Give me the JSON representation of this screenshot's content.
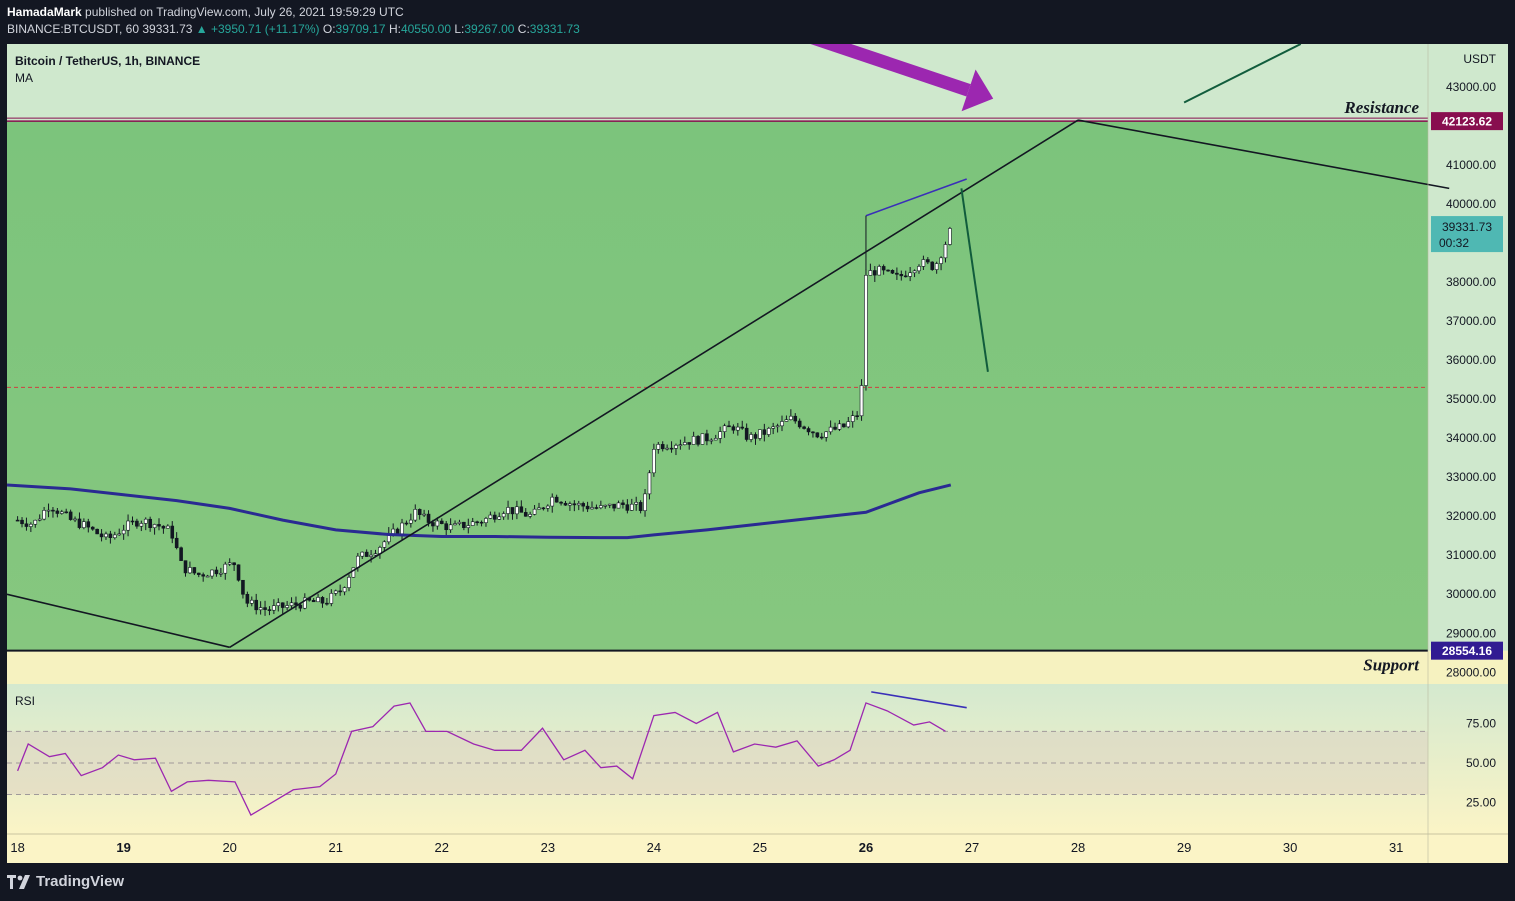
{
  "header": {
    "author": "HamadaMark",
    "published": "published on TradingView.com, July 26, 2021 19:59:29 UTC",
    "symbol": "BINANCE:BTCUSDT, 60",
    "last": "39331.73",
    "change": "▲ +3950.71 (+11.17%)",
    "o_label": "O:",
    "o": "39709.17",
    "h_label": "H:",
    "h": "40550.00",
    "l_label": "L:",
    "l": "39267.00",
    "c_label": "C:",
    "c": "39331.73"
  },
  "legend": {
    "title": "Bitcoin / TetherUS, 1h, BINANCE",
    "indicator": "MA"
  },
  "rsi_label": "RSI",
  "footer": {
    "brand": "TradingView",
    "logo_icon": "tradingview-logo-icon"
  },
  "colors": {
    "zone_green": "#7cc47c",
    "zone_pale": "#cfe8cd",
    "support_band": "#f6f2c0",
    "ma_line": "#2a2a92",
    "rsi_line": "#9c27b0",
    "resistance": "#880e4f",
    "support": "#311b92",
    "last_price": "#4fb8b3",
    "arrow": "#9c27b0"
  },
  "chart_data": {
    "type": "candlestick",
    "title": "Bitcoin / TetherUS, 1h, BINANCE",
    "price_axis": {
      "unit": "USDT",
      "ticks": [
        43000,
        41000,
        40000,
        38000,
        37000,
        36000,
        35000,
        34000,
        33000,
        32000,
        31000,
        30000,
        29000,
        28000
      ],
      "tick_labels": [
        "43000.00",
        "41000.00",
        "40000.00",
        "38000.00",
        "37000.00",
        "36000.00",
        "35000.00",
        "34000.00",
        "33000.00",
        "32000.00",
        "31000.00",
        "30000.00",
        "29000.00",
        "28000.00"
      ],
      "range": [
        27700,
        44100
      ]
    },
    "time_axis": {
      "labels": [
        "18",
        "19",
        "20",
        "21",
        "22",
        "23",
        "24",
        "25",
        "26",
        "27",
        "28",
        "29",
        "30",
        "31"
      ],
      "bold": [
        "19",
        "26"
      ],
      "range": [
        17.9,
        31.3
      ]
    },
    "levels": [
      {
        "name": "Resistance",
        "value": 42123.62,
        "label": "42123.62"
      },
      {
        "name": "Support",
        "value": 28554.16,
        "label": "28554.16"
      }
    ],
    "last_price": {
      "value": 39331.73,
      "label": "39331.73",
      "countdown": "00:32"
    },
    "dashed_level": 35300,
    "price_path": [
      [
        18.0,
        31900
      ],
      [
        18.15,
        31800
      ],
      [
        18.3,
        32300
      ],
      [
        18.5,
        31900
      ],
      [
        18.6,
        31800
      ],
      [
        18.85,
        31400
      ],
      [
        19.0,
        31700
      ],
      [
        19.15,
        31900
      ],
      [
        19.3,
        31800
      ],
      [
        19.45,
        31600
      ],
      [
        19.55,
        30700
      ],
      [
        19.7,
        30500
      ],
      [
        19.85,
        30600
      ],
      [
        20.05,
        30800
      ],
      [
        20.15,
        29800
      ],
      [
        20.35,
        29600
      ],
      [
        20.55,
        29700
      ],
      [
        20.75,
        29800
      ],
      [
        20.9,
        29800
      ],
      [
        21.05,
        30100
      ],
      [
        21.2,
        30900
      ],
      [
        21.4,
        31200
      ],
      [
        21.6,
        31700
      ],
      [
        21.75,
        32100
      ],
      [
        21.85,
        31900
      ],
      [
        22.1,
        31700
      ],
      [
        22.4,
        31900
      ],
      [
        22.6,
        32200
      ],
      [
        22.85,
        32000
      ],
      [
        23.05,
        32500
      ],
      [
        23.25,
        32300
      ],
      [
        23.5,
        32200
      ],
      [
        23.7,
        32300
      ],
      [
        23.9,
        32200
      ],
      [
        24.0,
        33800
      ],
      [
        24.25,
        33900
      ],
      [
        24.5,
        34000
      ],
      [
        24.75,
        34300
      ],
      [
        24.9,
        34000
      ],
      [
        25.1,
        34200
      ],
      [
        25.3,
        34500
      ],
      [
        25.55,
        34100
      ],
      [
        25.8,
        34300
      ],
      [
        25.95,
        34700
      ],
      [
        26.0,
        38200
      ],
      [
        26.1,
        38300
      ],
      [
        26.3,
        38100
      ],
      [
        26.5,
        38500
      ],
      [
        26.65,
        38400
      ],
      [
        26.75,
        39000
      ],
      [
        26.8,
        39331.73
      ]
    ],
    "ma_series": [
      [
        17.9,
        32800
      ],
      [
        18.5,
        32700
      ],
      [
        19.0,
        32550
      ],
      [
        19.5,
        32400
      ],
      [
        20.0,
        32200
      ],
      [
        20.5,
        31900
      ],
      [
        21.0,
        31650
      ],
      [
        21.5,
        31530
      ],
      [
        22.0,
        31480
      ],
      [
        22.5,
        31480
      ],
      [
        23.0,
        31460
      ],
      [
        23.5,
        31450
      ],
      [
        23.75,
        31450
      ],
      [
        24.0,
        31520
      ],
      [
        24.5,
        31650
      ],
      [
        25.0,
        31800
      ],
      [
        25.5,
        31950
      ],
      [
        26.0,
        32100
      ],
      [
        26.3,
        32400
      ],
      [
        26.5,
        32600
      ],
      [
        26.8,
        32800
      ]
    ],
    "trendlines": [
      {
        "name": "rising-wedge-upper",
        "points": [
          [
            20.0,
            28640
          ],
          [
            28.0,
            42150
          ]
        ]
      },
      {
        "name": "falling-line-right",
        "points": [
          [
            28.0,
            42150
          ],
          [
            31.5,
            40400
          ]
        ]
      },
      {
        "name": "falling-line-left",
        "points": [
          [
            17.9,
            30000
          ],
          [
            20.0,
            28640
          ]
        ]
      },
      {
        "name": "divergence-top",
        "points": [
          [
            26.0,
            39700
          ],
          [
            26.95,
            40640
          ]
        ]
      },
      {
        "name": "projection-down",
        "points": [
          [
            26.9,
            40400
          ],
          [
            27.15,
            35700
          ]
        ]
      },
      {
        "name": "projection-up",
        "points": [
          [
            29.0,
            42600
          ],
          [
            30.1,
            44100
          ]
        ]
      }
    ],
    "annotations": [
      "Resistance",
      "Support"
    ],
    "rsi": {
      "label": "RSI",
      "ticks": [
        75,
        50,
        25
      ],
      "tick_labels": [
        "75.00",
        "50.00",
        "25.00"
      ],
      "band": [
        30,
        70
      ],
      "range": [
        5,
        100
      ],
      "values": [
        [
          18.0,
          45
        ],
        [
          18.1,
          62
        ],
        [
          18.3,
          54
        ],
        [
          18.45,
          56
        ],
        [
          18.6,
          42
        ],
        [
          18.8,
          47
        ],
        [
          18.95,
          55
        ],
        [
          19.1,
          52
        ],
        [
          19.3,
          53
        ],
        [
          19.45,
          32
        ],
        [
          19.6,
          38
        ],
        [
          19.8,
          39
        ],
        [
          20.05,
          38
        ],
        [
          20.2,
          17
        ],
        [
          20.4,
          25
        ],
        [
          20.6,
          33
        ],
        [
          20.85,
          35
        ],
        [
          21.0,
          43
        ],
        [
          21.15,
          70
        ],
        [
          21.35,
          73
        ],
        [
          21.55,
          86
        ],
        [
          21.7,
          88
        ],
        [
          21.85,
          70
        ],
        [
          22.05,
          70
        ],
        [
          22.3,
          62
        ],
        [
          22.5,
          58
        ],
        [
          22.75,
          58
        ],
        [
          22.95,
          72
        ],
        [
          23.15,
          52
        ],
        [
          23.35,
          58
        ],
        [
          23.5,
          47
        ],
        [
          23.65,
          48
        ],
        [
          23.8,
          40
        ],
        [
          24.0,
          80
        ],
        [
          24.2,
          82
        ],
        [
          24.4,
          75
        ],
        [
          24.6,
          82
        ],
        [
          24.75,
          57
        ],
        [
          24.95,
          62
        ],
        [
          25.15,
          60
        ],
        [
          25.35,
          64
        ],
        [
          25.55,
          48
        ],
        [
          25.7,
          52
        ],
        [
          25.85,
          58
        ],
        [
          26.0,
          88
        ],
        [
          26.2,
          83
        ],
        [
          26.45,
          74
        ],
        [
          26.6,
          76
        ],
        [
          26.75,
          70
        ]
      ],
      "divergence_line": [
        [
          26.05,
          95
        ],
        [
          26.95,
          85
        ]
      ]
    },
    "arrow": {
      "from": [
        25.45,
        44300
      ],
      "to": [
        27.2,
        42700
      ],
      "color": "#9c27b0"
    }
  }
}
